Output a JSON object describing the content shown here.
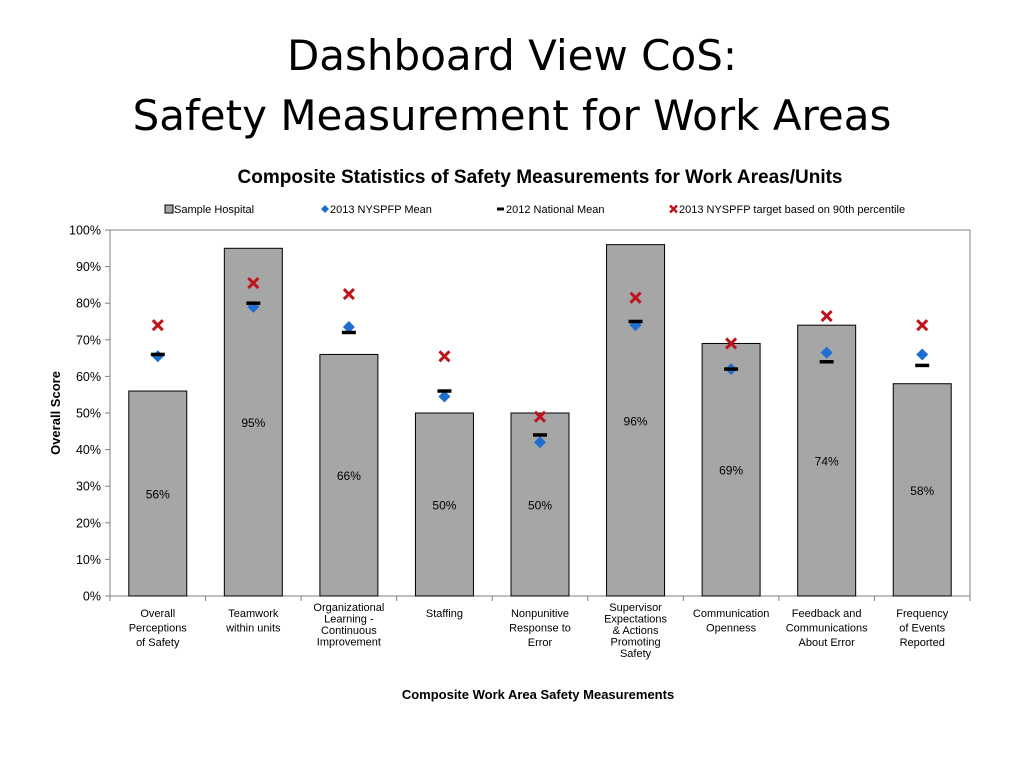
{
  "slide": {
    "title_line1": "Dashboard View CoS:",
    "title_line2": "Safety Measurement for Work Areas"
  },
  "chart_data": {
    "type": "bar",
    "title": "Composite Statistics of Safety Measurements for Work Areas/Units",
    "xlabel": "Composite Work Area Safety Measurements",
    "ylabel": "Overall Score",
    "ylim": [
      0,
      100
    ],
    "y_ticks": [
      "0%",
      "10%",
      "20%",
      "30%",
      "40%",
      "50%",
      "60%",
      "70%",
      "80%",
      "90%",
      "100%"
    ],
    "grid": false,
    "legend_position": "top",
    "categories": [
      [
        "Overall",
        "Perceptions",
        "of Safety"
      ],
      [
        "Teamwork",
        "within units"
      ],
      [
        "Organizational",
        "Learning -",
        "Continuous",
        "Improvement"
      ],
      [
        "Staffing"
      ],
      [
        "Nonpunitive",
        "Response to",
        "Error"
      ],
      [
        "Supervisor",
        "Expectations",
        "& Actions",
        "Promoting",
        "Safety"
      ],
      [
        "Communication",
        "Openness"
      ],
      [
        "Feedback and",
        "Communications",
        "About Error"
      ],
      [
        "Frequency",
        "of Events",
        "Reported"
      ]
    ],
    "series": [
      {
        "name": "Sample Hospital",
        "kind": "bar",
        "color": "#a6a6a6",
        "values": [
          56,
          95,
          66,
          50,
          50,
          96,
          69,
          74,
          58
        ],
        "labels": [
          "56%",
          "95%",
          "66%",
          "50%",
          "50%",
          "96%",
          "69%",
          "74%",
          "58%"
        ]
      },
      {
        "name": "2013 NYSPFP Mean",
        "kind": "diamond",
        "color": "#1f6fd1",
        "values": [
          65.5,
          79,
          73.5,
          54.5,
          42,
          74,
          62,
          66.5,
          66
        ]
      },
      {
        "name": "2012 National Mean",
        "kind": "dash",
        "color": "#000000",
        "values": [
          66,
          80,
          72,
          56,
          44,
          75,
          62,
          64,
          63
        ]
      },
      {
        "name": "2013 NYSPFP target based on 90th percentile",
        "kind": "cross",
        "color": "#c0141c",
        "values": [
          74,
          85.5,
          82.5,
          65.5,
          49,
          81.5,
          69,
          76.5,
          74
        ]
      }
    ]
  }
}
